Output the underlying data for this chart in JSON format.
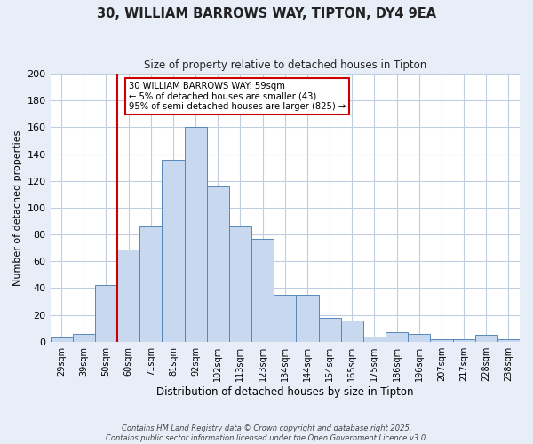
{
  "title": "30, WILLIAM BARROWS WAY, TIPTON, DY4 9EA",
  "subtitle": "Size of property relative to detached houses in Tipton",
  "xlabel": "Distribution of detached houses by size in Tipton",
  "ylabel": "Number of detached properties",
  "bin_labels": [
    "29sqm",
    "39sqm",
    "50sqm",
    "60sqm",
    "71sqm",
    "81sqm",
    "92sqm",
    "102sqm",
    "113sqm",
    "123sqm",
    "134sqm",
    "144sqm",
    "154sqm",
    "165sqm",
    "175sqm",
    "186sqm",
    "196sqm",
    "207sqm",
    "217sqm",
    "228sqm",
    "238sqm"
  ],
  "bar_heights": [
    3,
    6,
    42,
    69,
    86,
    136,
    160,
    116,
    86,
    77,
    35,
    35,
    18,
    16,
    4,
    7,
    6,
    2,
    2,
    5,
    2
  ],
  "bar_color": "#c8d8ee",
  "bar_edge_color": "#5588bb",
  "ylim": [
    0,
    200
  ],
  "yticks": [
    0,
    20,
    40,
    60,
    80,
    100,
    120,
    140,
    160,
    180,
    200
  ],
  "vline_color": "#cc0000",
  "annotation_title": "30 WILLIAM BARROWS WAY: 59sqm",
  "annotation_line1": "← 5% of detached houses are smaller (43)",
  "annotation_line2": "95% of semi-detached houses are larger (825) →",
  "annotation_box_color": "#ffffff",
  "annotation_box_edge": "#cc0000",
  "footer_line1": "Contains HM Land Registry data © Crown copyright and database right 2025.",
  "footer_line2": "Contains public sector information licensed under the Open Government Licence v3.0.",
  "bg_color": "#e8eef8",
  "plot_bg_color": "#ffffff",
  "grid_color": "#c0cce0"
}
